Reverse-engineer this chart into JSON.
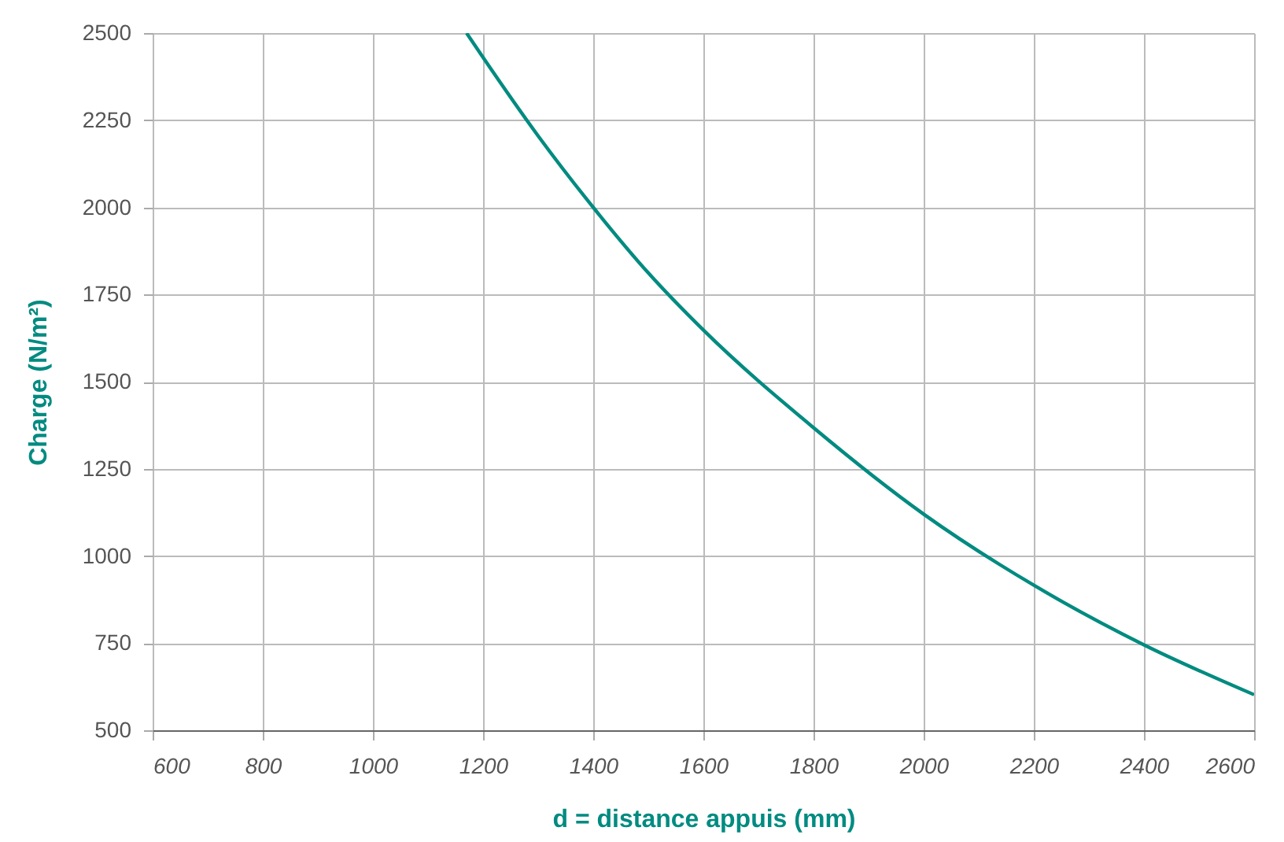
{
  "chart_data": {
    "type": "line",
    "xlabel": "d = distance appuis (mm)",
    "ylabel": "Charge (N/m²)",
    "x": [
      1170,
      1200,
      1300,
      1400,
      1500,
      1600,
      1800,
      2000,
      2200,
      2400,
      2600
    ],
    "series": [
      {
        "color": "#008b80",
        "values": [
          2500,
          2430,
          2205,
          2000,
          1812,
          1648,
          1368,
          1120,
          916,
          745,
          602
        ]
      }
    ],
    "xlim": [
      600,
      2600
    ],
    "xticks": [
      600,
      800,
      1000,
      1200,
      1400,
      1600,
      1800,
      2000,
      2200,
      2400,
      2600
    ],
    "ylim": [
      500,
      2500
    ],
    "yticks": [
      500,
      750,
      1000,
      1250,
      1500,
      1750,
      2000,
      2250,
      2500
    ],
    "grid": true,
    "marker": "none",
    "line_style": "solid"
  }
}
